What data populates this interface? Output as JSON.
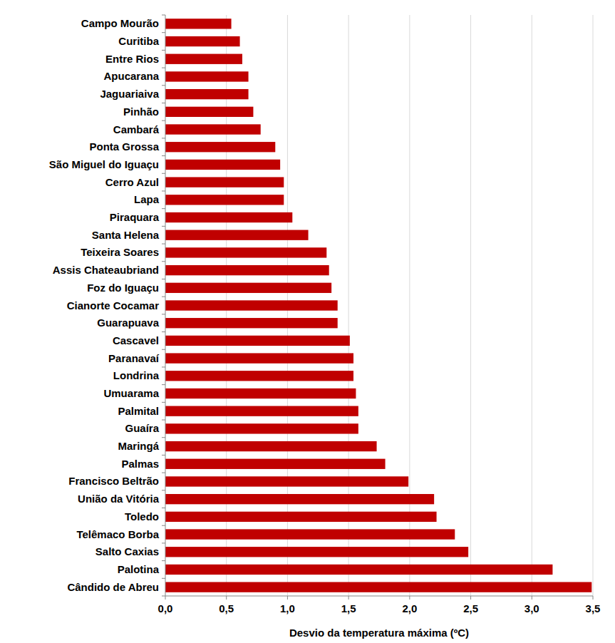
{
  "chart_data": {
    "type": "bar",
    "orientation": "horizontal",
    "x_label": "Desvio da temperatura máxima (ºC)",
    "categories": [
      "Campo Mourão",
      "Curitiba",
      "Entre Rios",
      "Apucarana",
      "Jaguariaiva",
      "Pinhão",
      "Cambará",
      "Ponta Grossa",
      "São Miguel do Iguaçu",
      "Cerro Azul",
      "Lapa",
      "Piraquara",
      "Santa Helena",
      "Teixeira Soares",
      "Assis Chateaubriand",
      "Foz do Iguaçu",
      "Cianorte Cocamar",
      "Guarapuava",
      "Cascavel",
      "Paranavaí",
      "Londrina",
      "Umuarama",
      "Palmital",
      "Guaíra",
      "Maringá",
      "Palmas",
      "Francisco Beltrão",
      "União da Vitória",
      "Toledo",
      "Telêmaco Borba",
      "Salto Caxias",
      "Palotina",
      "Cândido de Abreu"
    ],
    "values": [
      0.54,
      0.61,
      0.63,
      0.68,
      0.68,
      0.72,
      0.78,
      0.9,
      0.94,
      0.97,
      0.97,
      1.04,
      1.17,
      1.32,
      1.34,
      1.36,
      1.41,
      1.41,
      1.51,
      1.54,
      1.54,
      1.56,
      1.58,
      1.58,
      1.73,
      1.8,
      1.99,
      2.2,
      2.22,
      2.37,
      2.48,
      3.17,
      3.49
    ],
    "color": "#c00000",
    "xlim": [
      0,
      3.5
    ],
    "xticks": [
      {
        "value": 0,
        "label": "0,0"
      },
      {
        "value": 0.5,
        "label": "0,5"
      },
      {
        "value": 1,
        "label": "1,0"
      },
      {
        "value": 1.5,
        "label": "1,5"
      },
      {
        "value": 2,
        "label": "2,0"
      },
      {
        "value": 2.5,
        "label": "2,5"
      },
      {
        "value": 3,
        "label": "3,0"
      },
      {
        "value": 3.5,
        "label": "3,5"
      }
    ],
    "grid": true
  }
}
